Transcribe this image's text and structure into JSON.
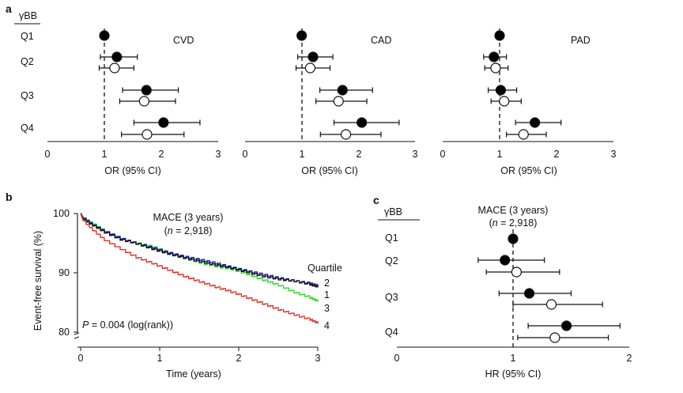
{
  "panel_labels": {
    "a": "a",
    "b": "b",
    "c": "c"
  },
  "row_header": "γBB",
  "quartile_labels": [
    "Q1",
    "Q2",
    "Q3",
    "Q4"
  ],
  "colors": {
    "axis": "#111111",
    "q1": "#111111",
    "q2": "#1a1aa8",
    "q3": "#25d425",
    "q4": "#e0281f"
  },
  "chart_data": [
    {
      "type": "scatter",
      "title": "CVD",
      "xlabel": "OR (95% CI)",
      "xlim": [
        0,
        3
      ],
      "xticks": [
        "0",
        "1",
        "2",
        "3"
      ],
      "reference_line": 1,
      "points": [
        {
          "row": "Q1",
          "kind": "filled",
          "or": 1.0,
          "lo": 1.0,
          "hi": 1.0
        },
        {
          "row": "Q2",
          "kind": "filled",
          "or": 1.22,
          "lo": 0.93,
          "hi": 1.58
        },
        {
          "row": "Q2",
          "kind": "open",
          "or": 1.18,
          "lo": 0.91,
          "hi": 1.52
        },
        {
          "row": "Q3",
          "kind": "filled",
          "or": 1.74,
          "lo": 1.32,
          "hi": 2.3
        },
        {
          "row": "Q3",
          "kind": "open",
          "or": 1.7,
          "lo": 1.27,
          "hi": 2.25
        },
        {
          "row": "Q4",
          "kind": "filled",
          "or": 2.04,
          "lo": 1.52,
          "hi": 2.68
        },
        {
          "row": "Q4",
          "kind": "open",
          "or": 1.75,
          "lo": 1.3,
          "hi": 2.4
        }
      ]
    },
    {
      "type": "scatter",
      "title": "CAD",
      "xlabel": "OR (95% CI)",
      "xlim": [
        0,
        3
      ],
      "xticks": [
        "0",
        "1",
        "2",
        "3"
      ],
      "reference_line": 1,
      "points": [
        {
          "row": "Q1",
          "kind": "filled",
          "or": 1.0,
          "lo": 1.0,
          "hi": 1.0
        },
        {
          "row": "Q2",
          "kind": "filled",
          "or": 1.2,
          "lo": 0.93,
          "hi": 1.55
        },
        {
          "row": "Q2",
          "kind": "open",
          "or": 1.15,
          "lo": 0.9,
          "hi": 1.5
        },
        {
          "row": "Q3",
          "kind": "filled",
          "or": 1.72,
          "lo": 1.32,
          "hi": 2.25
        },
        {
          "row": "Q3",
          "kind": "open",
          "or": 1.65,
          "lo": 1.25,
          "hi": 2.15
        },
        {
          "row": "Q4",
          "kind": "filled",
          "or": 2.06,
          "lo": 1.57,
          "hi": 2.72
        },
        {
          "row": "Q4",
          "kind": "open",
          "or": 1.78,
          "lo": 1.33,
          "hi": 2.4
        }
      ]
    },
    {
      "type": "scatter",
      "title": "PAD",
      "xlabel": "OR (95% CI)",
      "xlim": [
        0,
        3
      ],
      "xticks": [
        "0",
        "1",
        "2",
        "3"
      ],
      "reference_line": 1,
      "points": [
        {
          "row": "Q1",
          "kind": "filled",
          "or": 1.0,
          "lo": 1.0,
          "hi": 1.0
        },
        {
          "row": "Q2",
          "kind": "filled",
          "or": 0.9,
          "lo": 0.72,
          "hi": 1.12
        },
        {
          "row": "Q2",
          "kind": "open",
          "or": 0.93,
          "lo": 0.74,
          "hi": 1.15
        },
        {
          "row": "Q3",
          "kind": "filled",
          "or": 1.02,
          "lo": 0.8,
          "hi": 1.3
        },
        {
          "row": "Q3",
          "kind": "open",
          "or": 1.08,
          "lo": 0.85,
          "hi": 1.38
        },
        {
          "row": "Q4",
          "kind": "filled",
          "or": 1.62,
          "lo": 1.28,
          "hi": 2.08
        },
        {
          "row": "Q4",
          "kind": "open",
          "or": 1.42,
          "lo": 1.12,
          "hi": 1.82
        }
      ]
    },
    {
      "type": "line",
      "title": "MACE (3 years)",
      "subtitle_prefix": "(",
      "subtitle_n": "n",
      "subtitle_suffix": " = 2,918)",
      "xlabel": "Time (years)",
      "ylabel": "Event-free survival (%)",
      "xlim": [
        0,
        3
      ],
      "ylim": [
        80,
        100
      ],
      "xticks": [
        "0",
        "1",
        "2",
        "3"
      ],
      "yticks": [
        "80",
        "90",
        "100"
      ],
      "legend_title": "Quartile",
      "annotation_p": "P",
      "annotation_rest": " = 0.004 (log(rank))",
      "series": [
        {
          "name": "1",
          "color": "#111111",
          "x": [
            0,
            0.03,
            0.15,
            0.3,
            0.5,
            0.7,
            0.9,
            1.1,
            1.3,
            1.5,
            1.7,
            1.9,
            2.1,
            2.3,
            2.5,
            2.7,
            2.9,
            3.0
          ],
          "y": [
            100,
            99.0,
            98.0,
            96.8,
            95.6,
            94.9,
            94.0,
            93.2,
            92.5,
            91.9,
            91.3,
            90.8,
            90.1,
            89.4,
            88.9,
            88.6,
            88.0,
            87.6
          ]
        },
        {
          "name": "2",
          "color": "#1a1aa8",
          "x": [
            0,
            0.03,
            0.15,
            0.3,
            0.5,
            0.7,
            0.9,
            1.1,
            1.3,
            1.5,
            1.7,
            1.9,
            2.1,
            2.3,
            2.5,
            2.7,
            2.9,
            3.0
          ],
          "y": [
            100,
            99.2,
            98.1,
            97.0,
            95.8,
            94.9,
            94.2,
            93.4,
            92.7,
            92.2,
            91.6,
            90.9,
            90.3,
            89.7,
            89.1,
            88.6,
            88.2,
            87.8
          ]
        },
        {
          "name": "3",
          "color": "#25d425",
          "x": [
            0,
            0.03,
            0.15,
            0.3,
            0.5,
            0.7,
            0.9,
            1.1,
            1.3,
            1.5,
            1.7,
            1.9,
            2.1,
            2.3,
            2.5,
            2.7,
            2.9,
            3.0
          ],
          "y": [
            100,
            99.3,
            98.3,
            97.0,
            95.7,
            95.0,
            94.4,
            93.4,
            92.5,
            91.7,
            91.1,
            90.6,
            89.8,
            88.8,
            87.9,
            86.7,
            85.8,
            85.2
          ]
        },
        {
          "name": "4",
          "color": "#e0281f",
          "x": [
            0,
            0.03,
            0.15,
            0.3,
            0.5,
            0.7,
            0.9,
            1.1,
            1.3,
            1.5,
            1.7,
            1.9,
            2.1,
            2.3,
            2.5,
            2.7,
            2.9,
            3.0
          ],
          "y": [
            100,
            98.8,
            97.2,
            95.5,
            94.0,
            92.6,
            91.6,
            90.5,
            89.4,
            88.5,
            87.6,
            86.8,
            85.8,
            84.8,
            83.8,
            82.9,
            82.1,
            81.5
          ]
        }
      ]
    },
    {
      "type": "scatter",
      "title": "MACE (3 years)",
      "subtitle_prefix": "(",
      "subtitle_n": "n",
      "subtitle_suffix": " = 2,918)",
      "xlabel": "HR (95% CI)",
      "xlim": [
        0,
        2
      ],
      "xticks": [
        "0",
        "1",
        "2"
      ],
      "reference_line": 1,
      "points": [
        {
          "row": "Q1",
          "kind": "filled",
          "or": 1.0,
          "lo": 1.0,
          "hi": 1.0
        },
        {
          "row": "Q2",
          "kind": "filled",
          "or": 0.93,
          "lo": 0.7,
          "hi": 1.27
        },
        {
          "row": "Q2",
          "kind": "open",
          "or": 1.03,
          "lo": 0.77,
          "hi": 1.4
        },
        {
          "row": "Q3",
          "kind": "filled",
          "or": 1.14,
          "lo": 0.88,
          "hi": 1.5
        },
        {
          "row": "Q3",
          "kind": "open",
          "or": 1.33,
          "lo": 1.0,
          "hi": 1.77
        },
        {
          "row": "Q4",
          "kind": "filled",
          "or": 1.46,
          "lo": 1.13,
          "hi": 1.92
        },
        {
          "row": "Q4",
          "kind": "open",
          "or": 1.36,
          "lo": 1.04,
          "hi": 1.82
        }
      ]
    }
  ]
}
